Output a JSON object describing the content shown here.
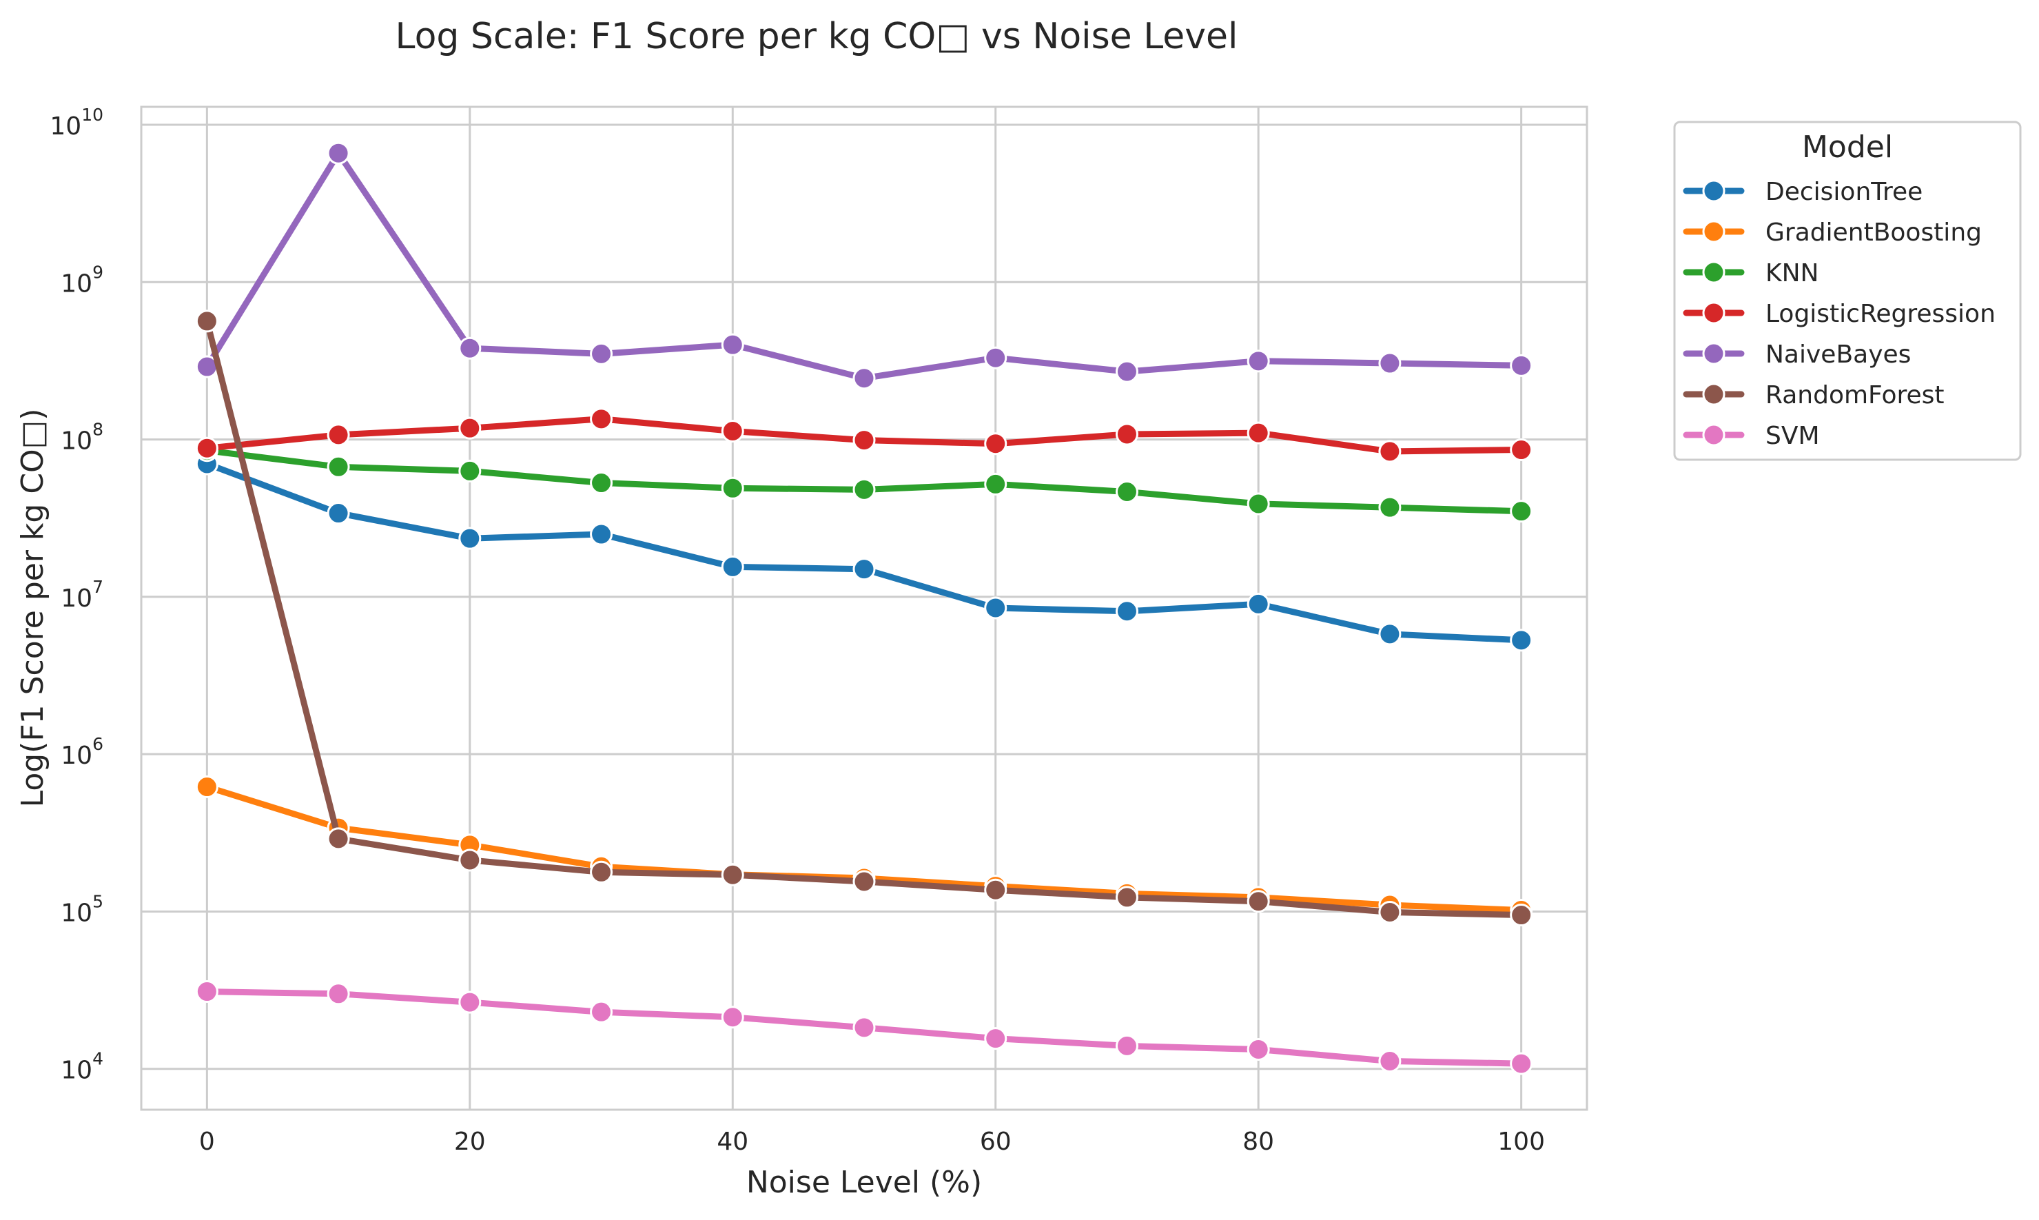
{
  "chart_data": {
    "type": "line",
    "title": "Log Scale: F1 Score per kg CO□ vs Noise Level",
    "xlabel": "Noise Level (%)",
    "ylabel": "Log(F1 Score per kg CO□)",
    "yscale": "log",
    "xlim": [
      -5,
      105
    ],
    "ylim": [
      5500,
      13000000000
    ],
    "x_ticks": [
      0,
      20,
      40,
      60,
      80,
      100
    ],
    "x_tick_labels": [
      "0",
      "20",
      "40",
      "60",
      "80",
      "100"
    ],
    "y_ticks": [
      10000,
      100000,
      1000000,
      10000000,
      100000000,
      1000000000,
      10000000000
    ],
    "y_tick_labels": [
      {
        "base": "10",
        "exp": "4"
      },
      {
        "base": "10",
        "exp": "5"
      },
      {
        "base": "10",
        "exp": "6"
      },
      {
        "base": "10",
        "exp": "7"
      },
      {
        "base": "10",
        "exp": "8"
      },
      {
        "base": "10",
        "exp": "9"
      },
      {
        "base": "10",
        "exp": "10"
      }
    ],
    "grid": true,
    "legend": {
      "title": "Model",
      "placement": "outside-right-top"
    },
    "x": [
      0,
      10,
      20,
      30,
      40,
      50,
      60,
      70,
      80,
      90,
      100
    ],
    "series": [
      {
        "name": "DecisionTree",
        "color": "#1f77b4",
        "values": [
          70000000,
          34000000,
          23500000,
          25000000,
          15500000,
          15000000,
          8500000,
          8100000,
          9000000,
          5800000,
          5300000
        ]
      },
      {
        "name": "GradientBoosting",
        "color": "#ff7f0e",
        "values": [
          620000,
          340000,
          265000,
          193000,
          172000,
          163000,
          145000,
          130000,
          123000,
          110000,
          102000
        ]
      },
      {
        "name": "KNN",
        "color": "#2ca02c",
        "values": [
          85000000,
          67000000,
          63000000,
          53000000,
          49000000,
          48000000,
          52000000,
          46500000,
          39000000,
          37000000,
          35000000
        ]
      },
      {
        "name": "LogisticRegression",
        "color": "#d62728",
        "values": [
          88000000,
          107000000,
          118000000,
          135000000,
          113000000,
          99000000,
          94000000,
          108000000,
          110000000,
          84000000,
          86000000
        ]
      },
      {
        "name": "NaiveBayes",
        "color": "#9467bd",
        "values": [
          290000000,
          6600000000,
          380000000,
          350000000,
          400000000,
          245000000,
          330000000,
          270000000,
          315000000,
          305000000,
          295000000
        ]
      },
      {
        "name": "RandomForest",
        "color": "#8c564b",
        "values": [
          565000000,
          290000,
          212000,
          178000,
          171000,
          155000,
          137000,
          123000,
          116000,
          99000,
          95000
        ]
      },
      {
        "name": "SVM",
        "color": "#e377c2",
        "values": [
          31000,
          30000,
          26500,
          23000,
          21300,
          18300,
          15600,
          14000,
          13300,
          11200,
          10800
        ]
      }
    ]
  }
}
